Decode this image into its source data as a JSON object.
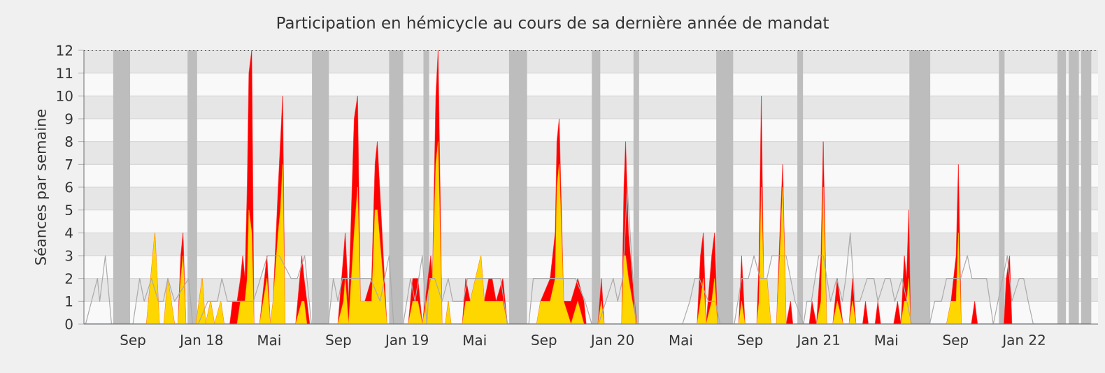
{
  "chart_data": {
    "type": "area",
    "title": "Participation en hémicycle au cours de sa dernière année de mandat",
    "ylabel": "Séances par semaine",
    "xlim": [
      "2017-06-20",
      "2022-05-26"
    ],
    "ylim": [
      0,
      12
    ],
    "yticks": [
      0,
      1,
      2,
      3,
      4,
      5,
      6,
      7,
      8,
      9,
      10,
      11,
      12
    ],
    "xticks": [
      {
        "value": "2017-09-15",
        "label": "Sep"
      },
      {
        "value": "2018-01-15",
        "label": "Jan 18"
      },
      {
        "value": "2018-05-15",
        "label": "Mai"
      },
      {
        "value": "2018-09-15",
        "label": "Sep"
      },
      {
        "value": "2019-01-15",
        "label": "Jan 19"
      },
      {
        "value": "2019-05-15",
        "label": "Mai"
      },
      {
        "value": "2019-09-15",
        "label": "Sep"
      },
      {
        "value": "2020-01-15",
        "label": "Jan 20"
      },
      {
        "value": "2020-05-15",
        "label": "Mai"
      },
      {
        "value": "2020-09-15",
        "label": "Sep"
      },
      {
        "value": "2021-01-15",
        "label": "Jan 21"
      },
      {
        "value": "2021-05-15",
        "label": "Mai"
      },
      {
        "value": "2021-09-15",
        "label": "Sep"
      },
      {
        "value": "2022-01-15",
        "label": "Jan 22"
      }
    ],
    "grid": "y",
    "x": [
      "2017-06-20",
      "2017-10-09",
      "2017-10-24",
      "2017-11-01",
      "2017-11-09",
      "2017-11-16",
      "2017-11-28",
      "2017-12-04",
      "2017-12-09",
      "2017-12-13",
      "2017-12-18",
      "2018-01-05",
      "2018-01-16",
      "2018-01-22",
      "2018-01-31",
      "2018-02-07",
      "2018-02-18",
      "2018-02-24",
      "2018-03-06",
      "2018-03-11",
      "2018-03-19",
      "2018-03-25",
      "2018-03-29",
      "2018-04-02",
      "2018-04-06",
      "2018-04-09",
      "2018-04-14",
      "2018-04-18",
      "2018-04-28",
      "2018-05-11",
      "2018-05-17",
      "2018-05-22",
      "2018-05-31",
      "2018-06-04",
      "2018-06-08",
      "2018-06-12",
      "2018-07-01",
      "2018-07-12",
      "2018-07-16",
      "2018-07-21",
      "2018-07-26",
      "2018-09-14",
      "2018-09-24",
      "2018-09-27",
      "2018-10-03",
      "2018-10-13",
      "2018-10-19",
      "2018-10-24",
      "2018-11-01",
      "2018-11-13",
      "2018-11-19",
      "2018-11-23",
      "2018-12-10",
      "2019-01-17",
      "2019-01-25",
      "2019-02-03",
      "2019-02-11",
      "2019-02-26",
      "2019-03-01",
      "2019-03-07",
      "2019-03-11",
      "2019-03-18",
      "2019-03-24",
      "2019-03-29",
      "2019-04-03",
      "2019-04-23",
      "2019-04-29",
      "2019-05-07",
      "2019-05-26",
      "2019-06-01",
      "2019-06-09",
      "2019-06-15",
      "2019-06-22",
      "2019-07-04",
      "2019-07-12",
      "2019-09-02",
      "2019-09-09",
      "2019-09-26",
      "2019-10-05",
      "2019-10-08",
      "2019-10-12",
      "2019-10-20",
      "2019-11-02",
      "2019-11-14",
      "2019-11-25",
      "2019-11-29",
      "2019-12-20",
      "2019-12-26",
      "2019-12-31",
      "2020-01-31",
      "2020-02-04",
      "2020-02-07",
      "2020-02-12",
      "2020-02-19",
      "2020-02-27",
      "2020-06-13",
      "2020-06-19",
      "2020-06-24",
      "2020-06-29",
      "2020-07-09",
      "2020-07-14",
      "2020-07-19",
      "2020-08-26",
      "2020-08-31",
      "2020-09-06",
      "2020-09-27",
      "2020-10-01",
      "2020-10-05",
      "2020-10-09",
      "2020-10-15",
      "2020-10-22",
      "2020-11-01",
      "2020-11-07",
      "2020-11-12",
      "2020-11-18",
      "2020-11-26",
      "2020-11-30",
      "2020-12-29",
      "2021-01-03",
      "2021-01-11",
      "2021-01-19",
      "2021-01-23",
      "2021-01-29",
      "2021-02-09",
      "2021-02-17",
      "2021-02-27",
      "2021-03-10",
      "2021-03-16",
      "2021-03-22",
      "2021-04-03",
      "2021-04-08",
      "2021-04-13",
      "2021-04-25",
      "2021-04-30",
      "2021-05-05",
      "2021-05-28",
      "2021-06-04",
      "2021-06-10",
      "2021-06-16",
      "2021-06-20",
      "2021-06-24",
      "2021-06-27",
      "2021-08-30",
      "2021-09-07",
      "2021-09-16",
      "2021-09-20",
      "2021-09-25",
      "2021-10-13",
      "2021-10-19",
      "2021-10-24",
      "2021-12-10",
      "2021-12-14",
      "2021-12-20",
      "2021-12-24",
      "2022-05-12"
    ],
    "series": [
      {
        "color": "#ff0000",
        "values": [
          0,
          0,
          4,
          0,
          0,
          2,
          0,
          0,
          3,
          4,
          0,
          0,
          2,
          0,
          1,
          0,
          1,
          0,
          0,
          1,
          1,
          2,
          3,
          2,
          6,
          11,
          12,
          0,
          0,
          3,
          0,
          1,
          6,
          8,
          10,
          0,
          0,
          3,
          2,
          1,
          0,
          0,
          3,
          4,
          1,
          9,
          10,
          1,
          1,
          2,
          7,
          8,
          0,
          0,
          2,
          2,
          0,
          3,
          2,
          10,
          12,
          0,
          0,
          1,
          0,
          0,
          2,
          1,
          3,
          1,
          2,
          2,
          1,
          2,
          0,
          0,
          1,
          2,
          4,
          8,
          9,
          1,
          1,
          2,
          1,
          0,
          0,
          2,
          0,
          0,
          6,
          8,
          4,
          2,
          0,
          0,
          3,
          4,
          0,
          3,
          4,
          0,
          0,
          3,
          0,
          0,
          3,
          10,
          2,
          2,
          0,
          0,
          4,
          7,
          0,
          1,
          0,
          0,
          1,
          0,
          3,
          8,
          0,
          0,
          2,
          0,
          0,
          2,
          0,
          0,
          1,
          0,
          0,
          1,
          0,
          0,
          1,
          0,
          3,
          2,
          5,
          0,
          0,
          1,
          3,
          7,
          0,
          0,
          1,
          0,
          0,
          2,
          3,
          0,
          0
        ]
      },
      {
        "color": "#ffd700",
        "values": [
          0,
          0,
          4,
          0,
          0,
          2,
          0,
          0,
          2,
          3,
          0,
          0,
          2,
          0,
          1,
          0,
          1,
          0,
          0,
          0,
          0,
          1,
          1,
          1,
          2,
          5,
          4,
          0,
          0,
          2,
          0,
          1,
          4,
          5,
          7,
          0,
          0,
          1,
          1,
          0,
          0,
          0,
          1,
          2,
          0,
          4,
          6,
          1,
          1,
          1,
          5,
          5,
          0,
          0,
          1,
          1,
          0,
          2,
          2,
          7,
          8,
          0,
          0,
          1,
          0,
          0,
          1,
          1,
          3,
          1,
          1,
          1,
          1,
          1,
          0,
          0,
          1,
          1,
          2,
          6,
          7,
          1,
          0,
          1,
          0,
          0,
          0,
          1,
          0,
          0,
          3,
          3,
          2,
          1,
          0,
          0,
          1,
          2,
          0,
          1,
          2,
          0,
          0,
          1,
          0,
          0,
          1,
          6,
          2,
          2,
          0,
          0,
          3,
          6,
          0,
          0,
          0,
          0,
          0,
          0,
          1,
          6,
          0,
          0,
          1,
          0,
          0,
          1,
          0,
          0,
          0,
          0,
          0,
          0,
          0,
          0,
          0,
          0,
          1,
          1,
          2,
          0,
          0,
          1,
          1,
          4,
          0,
          0,
          0,
          0,
          0,
          0,
          0,
          0,
          0
        ]
      },
      {
        "type": "line",
        "color": "#aaaaaa",
        "x": [
          "2017-06-23",
          "2017-07-14",
          "2017-07-18",
          "2017-07-28",
          "2017-08-08",
          "2017-09-15",
          "2017-09-27",
          "2017-10-05",
          "2017-10-18",
          "2017-10-30",
          "2017-11-08",
          "2017-11-16",
          "2017-11-28",
          "2017-12-23",
          "2017-12-30",
          "2018-01-09",
          "2018-01-26",
          "2018-02-12",
          "2018-02-20",
          "2018-03-02",
          "2018-03-19",
          "2018-04-17",
          "2018-05-12",
          "2018-06-02",
          "2018-06-23",
          "2018-07-04",
          "2018-07-17",
          "2018-07-29",
          "2018-08-28",
          "2018-09-06",
          "2018-09-14",
          "2018-09-22",
          "2018-10-04",
          "2018-10-29",
          "2018-11-11",
          "2018-11-28",
          "2018-12-14",
          "2018-12-22",
          "2019-01-08",
          "2019-01-21",
          "2019-01-29",
          "2019-02-11",
          "2019-02-19",
          "2019-02-24",
          "2019-03-05",
          "2019-03-18",
          "2019-03-29",
          "2019-04-06",
          "2019-04-25",
          "2019-05-02",
          "2019-05-19",
          "2019-06-05",
          "2019-06-30",
          "2019-07-12",
          "2019-08-19",
          "2019-08-27",
          "2019-09-22",
          "2019-10-29",
          "2019-11-10",
          "2019-11-27",
          "2019-12-09",
          "2019-12-21",
          "2020-01-03",
          "2020-01-16",
          "2020-01-24",
          "2020-02-02",
          "2020-02-10",
          "2020-02-20",
          "2020-02-25",
          "2020-05-18",
          "2020-05-31",
          "2020-06-09",
          "2020-06-17",
          "2020-07-03",
          "2020-07-15",
          "2020-07-24",
          "2020-08-18",
          "2020-08-31",
          "2020-09-12",
          "2020-09-22",
          "2020-10-03",
          "2020-10-15",
          "2020-10-24",
          "2020-11-01",
          "2020-11-18",
          "2020-12-04",
          "2020-12-19",
          "2020-12-25",
          "2021-01-02",
          "2021-01-15",
          "2021-01-23",
          "2021-02-05",
          "2021-02-16",
          "2021-02-26",
          "2021-03-04",
          "2021-03-12",
          "2021-03-20",
          "2021-03-29",
          "2021-04-11",
          "2021-04-23",
          "2021-04-30",
          "2021-05-13",
          "2021-05-22",
          "2021-05-30",
          "2021-06-12",
          "2021-06-29",
          "2021-07-31",
          "2021-08-09",
          "2021-08-21",
          "2021-08-30",
          "2021-09-07",
          "2021-09-24",
          "2021-10-06",
          "2021-10-14",
          "2021-10-27",
          "2021-11-09",
          "2021-11-21",
          "2021-12-16",
          "2021-12-24",
          "2022-01-06",
          "2022-01-14",
          "2022-01-22",
          "2022-01-31",
          "2022-05-12"
        ],
        "values": [
          0,
          2,
          1,
          3,
          0,
          0,
          2,
          1,
          2,
          1,
          1,
          2,
          1,
          2,
          0,
          0,
          1,
          1,
          2,
          1,
          1,
          1,
          3,
          3,
          2,
          2,
          3,
          0,
          0,
          2,
          1,
          2,
          2,
          2,
          2,
          1,
          3,
          0,
          0,
          2,
          1,
          3,
          0,
          2,
          2,
          1,
          2,
          1,
          1,
          2,
          2,
          2,
          2,
          0,
          0,
          2,
          2,
          2,
          2,
          1,
          0,
          0,
          1,
          2,
          1,
          2,
          6,
          2,
          0,
          0,
          1,
          2,
          2,
          1,
          1,
          0,
          0,
          2,
          2,
          3,
          2,
          2,
          3,
          3,
          3,
          1,
          0,
          1,
          1,
          3,
          3,
          1,
          2,
          1,
          2,
          4,
          1,
          1,
          2,
          2,
          1,
          2,
          2,
          1,
          2,
          0,
          0,
          1,
          1,
          2,
          2,
          2,
          3,
          2,
          2,
          2,
          0,
          3,
          1,
          2,
          2,
          1,
          0,
          0
        ]
      }
    ],
    "bands": [
      {
        "axis": "x",
        "from": "2017-08-11",
        "to": "2017-09-10",
        "color": "#bdbdbd"
      },
      {
        "axis": "x",
        "from": "2017-12-21",
        "to": "2018-01-07",
        "color": "#bdbdbd"
      },
      {
        "axis": "x",
        "from": "2018-07-30",
        "to": "2018-08-29",
        "color": "#bdbdbd"
      },
      {
        "axis": "x",
        "from": "2018-12-14",
        "to": "2019-01-08",
        "color": "#bdbdbd"
      },
      {
        "axis": "x",
        "from": "2019-02-13",
        "to": "2019-02-23",
        "color": "#bdbdbd"
      },
      {
        "axis": "x",
        "from": "2019-07-15",
        "to": "2019-08-16",
        "color": "#bdbdbd"
      },
      {
        "axis": "x",
        "from": "2019-12-09",
        "to": "2019-12-24",
        "color": "#bdbdbd"
      },
      {
        "axis": "x",
        "from": "2020-02-21",
        "to": "2020-03-02",
        "color": "#bdbdbd"
      },
      {
        "axis": "x",
        "from": "2020-07-17",
        "to": "2020-08-16",
        "color": "#bdbdbd"
      },
      {
        "axis": "x",
        "from": "2020-12-08",
        "to": "2020-12-18",
        "color": "#bdbdbd"
      },
      {
        "axis": "x",
        "from": "2021-06-25",
        "to": "2021-08-01",
        "color": "#bdbdbd"
      },
      {
        "axis": "x",
        "from": "2021-12-01",
        "to": "2021-12-11",
        "color": "#bdbdbd"
      },
      {
        "axis": "x",
        "from": "2022-03-15",
        "to": "2022-03-30",
        "color": "#bdbdbd"
      },
      {
        "axis": "x",
        "from": "2022-04-04",
        "to": "2022-04-22",
        "color": "#bdbdbd"
      },
      {
        "axis": "x",
        "from": "2022-04-26",
        "to": "2022-05-14",
        "color": "#bdbdbd"
      }
    ],
    "ref_lines": [
      {
        "axis": "y",
        "value": 12,
        "color": "#000000",
        "line_style": "dotted"
      }
    ]
  }
}
